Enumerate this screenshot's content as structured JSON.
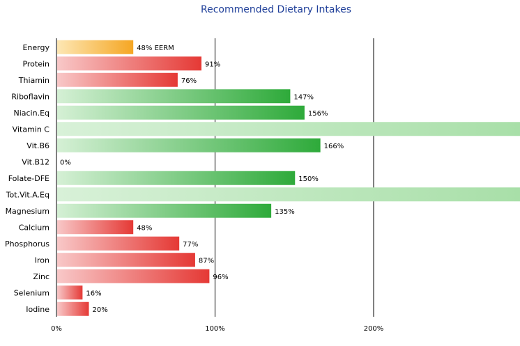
{
  "chart_data": {
    "type": "bar",
    "orientation": "horizontal",
    "title": "Recommended Dietary Intakes",
    "xlabel": "",
    "ylabel": "",
    "xlim": [
      0,
      292
    ],
    "x_ticks": [
      {
        "value": 0,
        "label": "0%"
      },
      {
        "value": 100,
        "label": "100%"
      },
      {
        "value": 200,
        "label": "200%"
      }
    ],
    "grid": "vertical lines at 100% and 200%",
    "legend": "none",
    "colors": {
      "energy": "#f5a623",
      "under_100": "#e53935",
      "over_100": "#2eaa3a",
      "beyond_axis": "#a8dfa8"
    },
    "categories": [
      "Energy",
      "Protein",
      "Thiamin",
      "Riboflavin",
      "Niacin.Eq",
      "Vitamin C",
      "Vit.B6",
      "Vit.B12",
      "Folate-DFE",
      "Tot.Vit.A.Eq",
      "Magnesium",
      "Calcium",
      "Phosphorus",
      "Iron",
      "Zinc",
      "Selenium",
      "Iodine"
    ],
    "values": [
      48,
      91,
      76,
      147,
      156,
      null,
      166,
      0,
      150,
      null,
      135,
      48,
      77,
      87,
      96,
      16,
      20
    ],
    "beyond_axis": [
      false,
      false,
      false,
      false,
      false,
      true,
      false,
      false,
      false,
      true,
      false,
      false,
      false,
      false,
      false,
      false,
      false
    ],
    "data_labels": [
      "48% EERM",
      "91%",
      "76%",
      "147%",
      "156%",
      "",
      "166%",
      "0%",
      "150%",
      "",
      "135%",
      "48%",
      "77%",
      "87%",
      "96%",
      "16%",
      "20%"
    ]
  }
}
